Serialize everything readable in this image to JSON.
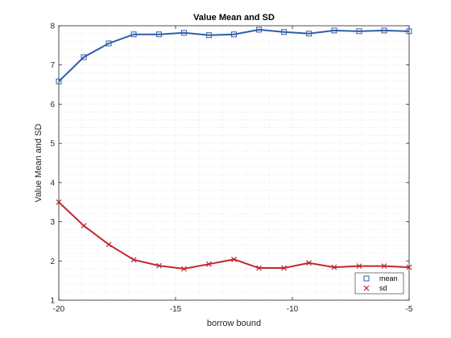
{
  "chart_data": {
    "type": "line",
    "title": "Value Mean and SD",
    "xlabel": "borrow bound",
    "ylabel": "Value Mean and SD",
    "xlim": [
      -20,
      -5
    ],
    "ylim": [
      1,
      8
    ],
    "x_ticks": [
      "-20",
      "-15",
      "-10",
      "-5"
    ],
    "y_ticks": [
      "1",
      "2",
      "3",
      "4",
      "5",
      "6",
      "7",
      "8"
    ],
    "grid": "minor dotted",
    "legend_position": "bottom-right",
    "x": [
      -20,
      -18.93,
      -17.86,
      -16.79,
      -15.71,
      -14.64,
      -13.57,
      -12.5,
      -11.43,
      -10.36,
      -9.29,
      -8.21,
      -7.14,
      -6.07,
      -5
    ],
    "series": [
      {
        "name": "mean",
        "color": "#2f5fa8",
        "marker": "square",
        "values": [
          6.58,
          7.2,
          7.55,
          7.78,
          7.78,
          7.82,
          7.76,
          7.78,
          7.9,
          7.84,
          7.8,
          7.88,
          7.86,
          7.88,
          7.86
        ]
      },
      {
        "name": "sd",
        "color": "#c1272d",
        "marker": "x",
        "values": [
          3.5,
          2.9,
          2.42,
          2.03,
          1.88,
          1.8,
          1.92,
          2.04,
          1.82,
          1.82,
          1.95,
          1.84,
          1.87,
          1.87,
          1.84
        ]
      }
    ]
  }
}
